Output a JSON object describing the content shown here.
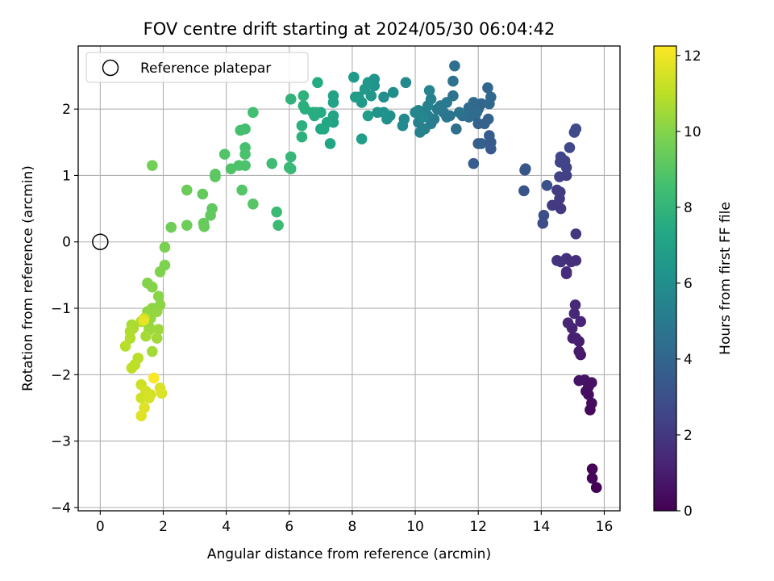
{
  "chart_data": {
    "type": "scatter",
    "title": "FOV centre drift starting at 2024/05/30 06:04:42",
    "xlabel": "Angular distance from reference (arcmin)",
    "ylabel": "Rotation from reference (arcmin)",
    "xlim": [
      -0.7,
      16.5
    ],
    "ylim": [
      -4.05,
      2.95
    ],
    "xticks": [
      0,
      2,
      4,
      6,
      8,
      10,
      12,
      14,
      16
    ],
    "yticks": [
      -4,
      -3,
      -2,
      -1,
      0,
      1,
      2
    ],
    "grid": true,
    "legend": {
      "label": "Reference platepar",
      "placement": "top-left",
      "marker": "open-circle"
    },
    "reference_point": {
      "x": 0,
      "y": 0
    },
    "colorbar": {
      "label": "Hours from first FF file",
      "min": 0,
      "max": 12.25,
      "ticks": [
        0,
        2,
        4,
        6,
        8,
        10,
        12
      ],
      "colormap": "viridis"
    },
    "series": [
      {
        "points": [
          [
            15.75,
            -3.7,
            0.05
          ],
          [
            15.62,
            -3.56,
            0.1
          ],
          [
            15.62,
            -3.42,
            0.15
          ],
          [
            15.55,
            -2.53,
            0.3
          ],
          [
            15.6,
            -2.43,
            0.35
          ],
          [
            15.5,
            -2.3,
            0.4
          ],
          [
            15.42,
            -2.25,
            0.45
          ],
          [
            15.5,
            -2.18,
            0.5
          ],
          [
            15.6,
            -2.12,
            0.55
          ],
          [
            15.38,
            -2.08,
            0.6
          ],
          [
            15.2,
            -2.09,
            0.65
          ],
          [
            15.25,
            -1.7,
            0.8
          ],
          [
            15.2,
            -1.65,
            0.9
          ],
          [
            15.2,
            -1.5,
            1.0
          ],
          [
            15.1,
            -1.45,
            1.05
          ],
          [
            15.0,
            -1.45,
            1.1
          ],
          [
            14.98,
            -1.3,
            1.15
          ],
          [
            15.25,
            -1.2,
            1.25
          ],
          [
            14.85,
            -1.22,
            1.3
          ],
          [
            15.05,
            -1.08,
            1.35
          ],
          [
            15.08,
            -0.95,
            1.4
          ],
          [
            14.8,
            -0.48,
            1.5
          ],
          [
            14.8,
            -0.45,
            1.55
          ],
          [
            15.1,
            -0.28,
            1.6
          ],
          [
            14.95,
            -0.3,
            1.65
          ],
          [
            14.8,
            -0.25,
            1.7
          ],
          [
            14.62,
            -0.3,
            1.75
          ],
          [
            14.5,
            -0.28,
            1.8
          ],
          [
            15.1,
            0.12,
            1.9
          ],
          [
            14.62,
            0.5,
            2.0
          ],
          [
            14.58,
            0.65,
            2.05
          ],
          [
            14.35,
            0.55,
            2.1
          ],
          [
            14.6,
            0.75,
            2.15
          ],
          [
            14.5,
            0.78,
            2.2
          ],
          [
            14.8,
            1.0,
            2.3
          ],
          [
            14.58,
            0.98,
            2.35
          ],
          [
            14.8,
            1.12,
            2.4
          ],
          [
            14.6,
            1.2,
            2.45
          ],
          [
            14.75,
            1.22,
            2.5
          ],
          [
            14.62,
            1.28,
            2.55
          ],
          [
            14.9,
            1.42,
            2.65
          ],
          [
            15.1,
            1.7,
            2.7
          ],
          [
            15.05,
            1.65,
            2.75
          ],
          [
            14.05,
            0.28,
            2.9
          ],
          [
            14.08,
            0.4,
            2.95
          ],
          [
            14.18,
            0.85,
            3.05
          ],
          [
            13.45,
            0.77,
            3.15
          ],
          [
            13.48,
            1.08,
            3.2
          ],
          [
            13.5,
            1.1,
            3.25
          ],
          [
            12.4,
            1.4,
            3.4
          ],
          [
            12.4,
            1.5,
            3.5
          ],
          [
            12.35,
            1.6,
            3.55
          ],
          [
            11.85,
            1.18,
            3.6
          ],
          [
            12.0,
            1.48,
            3.65
          ],
          [
            12.1,
            1.48,
            3.7
          ],
          [
            12.2,
            1.78,
            3.75
          ],
          [
            12.32,
            1.85,
            3.8
          ],
          [
            12.0,
            1.78,
            3.85
          ],
          [
            11.9,
            1.9,
            3.9
          ],
          [
            12.0,
            2.0,
            3.95
          ],
          [
            12.1,
            2.08,
            4.0
          ],
          [
            12.3,
            2.32,
            4.05
          ],
          [
            12.4,
            2.18,
            4.1
          ],
          [
            12.35,
            2.08,
            4.15
          ],
          [
            11.85,
            2.1,
            4.2
          ],
          [
            11.7,
            2.02,
            4.25
          ],
          [
            11.95,
            1.95,
            4.3
          ],
          [
            11.7,
            1.88,
            4.35
          ],
          [
            11.5,
            1.9,
            4.4
          ],
          [
            11.3,
            1.7,
            4.45
          ],
          [
            11.25,
            2.65,
            4.5
          ],
          [
            11.2,
            2.42,
            4.55
          ],
          [
            11.2,
            2.2,
            4.6
          ],
          [
            11.4,
            1.95,
            4.65
          ],
          [
            11.1,
            1.9,
            4.7
          ],
          [
            11.0,
            1.88,
            4.8
          ],
          [
            10.9,
            1.95,
            4.85
          ],
          [
            10.7,
            2.0,
            4.9
          ],
          [
            10.8,
            2.05,
            4.95
          ],
          [
            11.0,
            2.1,
            5.0
          ],
          [
            10.6,
            1.85,
            5.05
          ],
          [
            10.5,
            1.78,
            5.1
          ],
          [
            10.4,
            1.9,
            5.15
          ],
          [
            10.2,
            1.95,
            5.2
          ],
          [
            10.1,
            1.8,
            5.25
          ],
          [
            10.15,
            1.65,
            5.3
          ],
          [
            10.3,
            1.7,
            5.35
          ],
          [
            10.4,
            2.05,
            5.4
          ],
          [
            10.5,
            2.15,
            5.45
          ],
          [
            10.45,
            2.28,
            5.5
          ],
          [
            10.1,
            1.98,
            5.55
          ],
          [
            10.0,
            1.95,
            5.6
          ],
          [
            10.25,
            1.88,
            5.65
          ],
          [
            9.7,
            2.4,
            5.7
          ],
          [
            9.65,
            1.85,
            5.75
          ],
          [
            9.6,
            1.75,
            5.8
          ],
          [
            9.3,
            2.25,
            6.0
          ],
          [
            9.0,
            2.18,
            6.05
          ],
          [
            9.2,
            1.9,
            6.1
          ],
          [
            9.1,
            1.85,
            6.15
          ],
          [
            9.0,
            1.95,
            6.2
          ],
          [
            8.8,
            1.95,
            6.25
          ],
          [
            8.7,
            2.45,
            6.3
          ],
          [
            8.7,
            2.35,
            6.35
          ],
          [
            8.6,
            2.2,
            6.4
          ],
          [
            8.5,
            2.4,
            6.45
          ],
          [
            8.4,
            2.3,
            6.5
          ],
          [
            8.3,
            2.1,
            6.55
          ],
          [
            8.2,
            2.18,
            6.6
          ],
          [
            8.05,
            2.48,
            6.65
          ],
          [
            8.1,
            2.18,
            6.7
          ],
          [
            8.5,
            1.9,
            6.75
          ],
          [
            8.3,
            1.55,
            6.8
          ],
          [
            7.4,
            2.2,
            7.0
          ],
          [
            7.4,
            2.1,
            7.05
          ],
          [
            7.4,
            1.8,
            7.1
          ],
          [
            7.4,
            1.9,
            7.15
          ],
          [
            7.3,
            1.48,
            7.2
          ],
          [
            7.2,
            1.8,
            7.25
          ],
          [
            7.1,
            1.7,
            7.3
          ],
          [
            7.0,
            1.7,
            7.35
          ],
          [
            7.0,
            1.95,
            7.4
          ],
          [
            6.9,
            2.4,
            7.45
          ],
          [
            6.85,
            1.95,
            7.5
          ],
          [
            6.8,
            1.9,
            7.55
          ],
          [
            6.75,
            1.95,
            7.6
          ],
          [
            6.5,
            2.0,
            7.65
          ],
          [
            6.45,
            2.05,
            7.7
          ],
          [
            6.4,
            1.75,
            7.75
          ],
          [
            6.4,
            1.58,
            7.8
          ],
          [
            6.45,
            2.2,
            7.85
          ],
          [
            6.05,
            2.15,
            7.9
          ],
          [
            6.05,
            1.28,
            8.1
          ],
          [
            6.0,
            1.12,
            8.15
          ],
          [
            6.05,
            1.1,
            8.2
          ],
          [
            5.6,
            0.45,
            8.25
          ],
          [
            5.65,
            0.25,
            8.3
          ],
          [
            5.45,
            1.18,
            8.35
          ],
          [
            4.85,
            1.95,
            8.5
          ],
          [
            4.6,
            1.7,
            8.55
          ],
          [
            4.45,
            1.68,
            8.6
          ],
          [
            4.6,
            1.42,
            8.65
          ],
          [
            4.6,
            1.32,
            8.7
          ],
          [
            4.6,
            1.15,
            8.75
          ],
          [
            4.4,
            1.15,
            8.8
          ],
          [
            4.15,
            1.1,
            8.85
          ],
          [
            3.95,
            1.32,
            8.9
          ],
          [
            4.5,
            0.78,
            8.95
          ],
          [
            4.85,
            0.57,
            9.0
          ],
          [
            3.65,
            1.02,
            9.1
          ],
          [
            3.65,
            0.98,
            9.15
          ],
          [
            3.55,
            0.5,
            9.2
          ],
          [
            3.5,
            0.4,
            9.25
          ],
          [
            3.25,
            0.72,
            9.3
          ],
          [
            3.28,
            0.28,
            9.35
          ],
          [
            3.3,
            0.23,
            9.4
          ],
          [
            2.75,
            0.78,
            9.45
          ],
          [
            2.75,
            0.25,
            9.5
          ],
          [
            2.25,
            0.22,
            9.55
          ],
          [
            1.65,
            1.15,
            9.6
          ],
          [
            2.05,
            -0.08,
            9.8
          ],
          [
            2.05,
            -0.35,
            9.85
          ],
          [
            1.9,
            -0.45,
            9.9
          ],
          [
            1.5,
            -0.62,
            9.95
          ],
          [
            1.65,
            -0.68,
            10.0
          ],
          [
            1.85,
            -0.82,
            10.05
          ],
          [
            1.9,
            -0.95,
            10.1
          ],
          [
            1.65,
            -1.0,
            10.15
          ],
          [
            1.5,
            -1.05,
            10.2
          ],
          [
            1.8,
            -1.05,
            10.25
          ],
          [
            1.6,
            -1.15,
            10.3
          ],
          [
            1.55,
            -1.28,
            10.35
          ],
          [
            1.55,
            -1.33,
            10.4
          ],
          [
            1.85,
            -1.32,
            10.45
          ],
          [
            1.8,
            -1.45,
            10.5
          ],
          [
            1.65,
            -1.65,
            10.55
          ],
          [
            1.45,
            -1.42,
            10.6
          ],
          [
            1.0,
            -1.25,
            10.65
          ],
          [
            1.05,
            -1.3,
            10.7
          ],
          [
            0.95,
            -1.35,
            10.75
          ],
          [
            1.3,
            -1.2,
            10.8
          ],
          [
            0.95,
            -1.45,
            10.85
          ],
          [
            0.8,
            -1.57,
            10.9
          ],
          [
            1.2,
            -1.75,
            10.95
          ],
          [
            1.1,
            -1.85,
            11.0
          ],
          [
            1.0,
            -1.9,
            11.05
          ],
          [
            1.4,
            -1.15,
            11.1
          ],
          [
            1.3,
            -2.15,
            11.3
          ],
          [
            1.3,
            -2.35,
            11.35
          ],
          [
            1.45,
            -2.25,
            11.4
          ],
          [
            1.6,
            -2.3,
            11.45
          ],
          [
            1.55,
            -2.35,
            11.5
          ],
          [
            1.9,
            -2.2,
            11.55
          ],
          [
            1.95,
            -2.28,
            11.6
          ],
          [
            1.4,
            -2.5,
            11.65
          ],
          [
            1.3,
            -2.62,
            11.7
          ],
          [
            1.38,
            -1.18,
            11.8
          ],
          [
            1.7,
            -2.05,
            12.2
          ]
        ]
      }
    ]
  }
}
